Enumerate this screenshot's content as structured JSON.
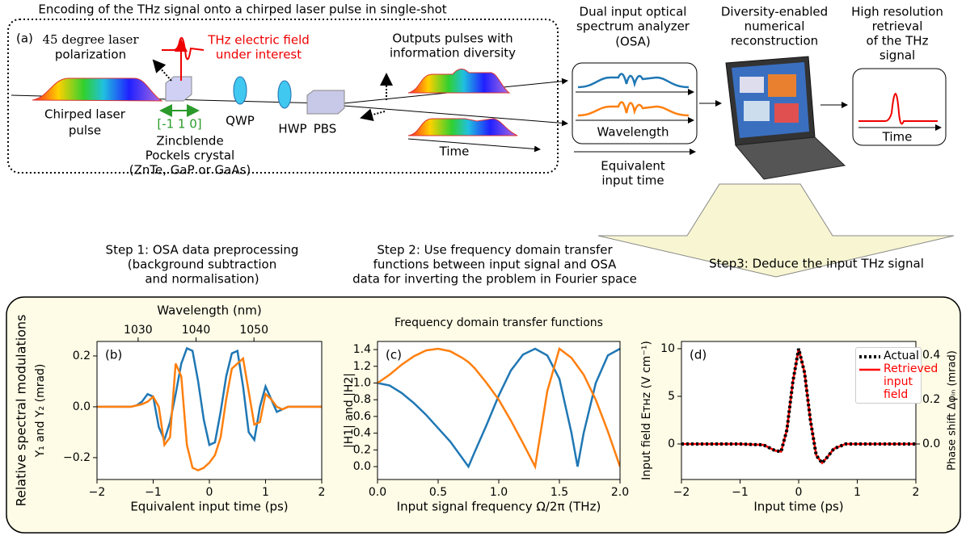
{
  "diagram": {
    "title": "Encoding of the THz signal onto a chirped laser pulse in single-shot",
    "panel": "(a)",
    "polarization": [
      "45 degree laser",
      "polarization"
    ],
    "thz_field": [
      "THz electric field",
      "under interest"
    ],
    "outputs": [
      "Outputs pulses with",
      "information diversity"
    ],
    "chirped": [
      "Chirped laser",
      "pulse"
    ],
    "axis_dir": "[-1 1 0]",
    "crystal": [
      "Zincblende",
      "Pockels crystal",
      "(ZnTe, GaP or GaAs)"
    ],
    "qwp": "QWP",
    "hwp": "HWP",
    "pbs": "PBS",
    "time": "Time",
    "osa": {
      "title": [
        "Dual input optical",
        "spectrum analyzer",
        "(OSA)"
      ],
      "wavelength": "Wavelength",
      "equiv": [
        "Equivalent",
        "input time"
      ]
    },
    "reconstruction": [
      "Diversity-enabled",
      "numerical",
      "reconstruction"
    ],
    "retrieval": {
      "title": [
        "High resolution",
        "retrieval",
        "of the THz",
        "signal"
      ],
      "time": "Time"
    }
  },
  "steps": [
    [
      "Step 1: OSA data preprocessing",
      "(background subtraction",
      "and normalisation)"
    ],
    [
      "Step 2: Use frequency domain transfer",
      "functions between input signal and OSA",
      "data for inverting the problem in Fourier space"
    ],
    [
      "Step3: Deduce the input THz signal"
    ]
  ],
  "chart_data": [
    {
      "type": "line",
      "panel_label": "(b)",
      "x_label": "Equivalent input time (ps)",
      "y_label": [
        "Relative spectral modulations",
        "Y₁ and Y₂ (mrad)"
      ],
      "x2_label": "Wavelength (nm)",
      "x": [
        -2,
        -1.9,
        -1.8,
        -1.7,
        -1.6,
        -1.5,
        -1.4,
        -1.3,
        -1.2,
        -1.1,
        -1,
        -0.9,
        -0.8,
        -0.7,
        -0.6,
        -0.5,
        -0.4,
        -0.3,
        -0.2,
        -0.1,
        0,
        0.1,
        0.2,
        0.3,
        0.4,
        0.5,
        0.6,
        0.7,
        0.8,
        0.9,
        1,
        1.1,
        1.2,
        1.3,
        1.4,
        1.5,
        1.6,
        1.7,
        1.8,
        1.9,
        2
      ],
      "series": [
        {
          "color": "#1f77b4",
          "values": [
            0,
            0,
            0,
            0,
            0,
            0,
            0,
            0.005,
            0.02,
            0.05,
            0.04,
            -0.08,
            -0.13,
            -0.06,
            0.05,
            0.17,
            0.23,
            0.22,
            0.1,
            -0.05,
            -0.15,
            -0.14,
            -0.02,
            0.12,
            0.21,
            0.22,
            0.08,
            -0.1,
            -0.13,
            0,
            0.08,
            0.03,
            -0.02,
            -0.01,
            0,
            0,
            0,
            0,
            0,
            0,
            0
          ]
        },
        {
          "color": "#ff7f0e",
          "values": [
            0,
            0,
            0,
            0,
            0,
            0,
            0,
            0.005,
            0.01,
            0.02,
            0.04,
            0,
            -0.15,
            -0.12,
            0.17,
            0.12,
            -0.15,
            -0.24,
            -0.25,
            -0.24,
            -0.22,
            -0.19,
            -0.12,
            0.03,
            0.15,
            0.17,
            0.19,
            0.06,
            -0.07,
            -0.06,
            0.05,
            0.03,
            0,
            -0.01,
            0,
            0,
            0,
            0,
            0,
            0,
            0
          ]
        }
      ],
      "xlim": [
        -2,
        2
      ],
      "xticks": [
        {
          "value": -2,
          "label": "−2"
        },
        {
          "value": -1,
          "label": "−1"
        },
        0,
        1,
        2
      ],
      "ylim": [
        -0.286,
        0.257
      ],
      "yticks": [
        {
          "value": -0.2,
          "label": "−0.2"
        },
        {
          "value": 0,
          "label": "0.0"
        },
        0.2
      ],
      "x2lim": [
        1022.9,
        1061.7
      ],
      "x2ticks": [
        1030,
        1040,
        1050
      ]
    },
    {
      "type": "line",
      "title": "Frequency domain transfer functions",
      "panel_label": "(c)",
      "x_label": "Input signal frequency  Ω/2π (THz)",
      "y_label": [
        "|H1| and |H2|"
      ],
      "x": [
        0,
        0.1,
        0.2,
        0.3,
        0.4,
        0.5,
        0.6,
        0.7,
        0.75,
        0.8,
        0.9,
        1,
        1.1,
        1.2,
        1.3,
        1.4,
        1.5,
        1.6,
        1.65,
        1.7,
        1.8,
        1.9,
        2
      ],
      "series": [
        {
          "color": "#1f77b4",
          "values": [
            1,
            0.97,
            0.88,
            0.76,
            0.62,
            0.46,
            0.3,
            0.1,
            0,
            0.17,
            0.5,
            0.85,
            1.15,
            1.34,
            1.41,
            1.33,
            1.05,
            0.4,
            0,
            0.4,
            1,
            1.33,
            1.41
          ]
        },
        {
          "color": "#ff7f0e",
          "values": [
            1,
            1.1,
            1.22,
            1.32,
            1.39,
            1.41,
            1.38,
            1.3,
            1.25,
            1.18,
            1,
            0.8,
            0.55,
            0.28,
            0,
            0.9,
            1.41,
            1.3,
            1.2,
            1.1,
            0.8,
            0.42,
            0
          ]
        }
      ],
      "xlim": [
        0,
        2
      ],
      "xticks": [
        {
          "value": 0,
          "label": "0.0"
        },
        0.5,
        {
          "value": 1,
          "label": "1.0"
        },
        1.5,
        {
          "value": 2,
          "label": "2.0"
        }
      ],
      "ylim": [
        -0.154,
        1.497
      ],
      "yticks": [
        {
          "value": 0,
          "label": "0.0"
        },
        0.2,
        0.4,
        0.6,
        0.8,
        {
          "value": 1,
          "label": "1.0"
        },
        1.2,
        1.4
      ]
    },
    {
      "type": "line",
      "panel_label": "(d)",
      "x_label": "Input time (ps)",
      "y_label": [
        "Input field Eᴛʜᴢ (V cm⁻¹)"
      ],
      "y2_label": "Phase shift Δφᵢₙ (mrad)",
      "x": [
        -2,
        -1,
        -0.6,
        -0.4,
        -0.3,
        -0.2,
        -0.1,
        0,
        0.1,
        0.2,
        0.3,
        0.4,
        0.5,
        0.6,
        0.8,
        1,
        2
      ],
      "series": [
        {
          "name": "Actual",
          "color": "#000000",
          "linestyle": "dotted",
          "values": [
            0,
            0,
            -0.1,
            -0.7,
            -0.8,
            1.5,
            6.5,
            10,
            7.5,
            2.5,
            -1.2,
            -2,
            -1.3,
            -0.5,
            0,
            0,
            0
          ]
        },
        {
          "name": "Retrieved input field",
          "color": "#ff0000",
          "linestyle": "solid",
          "values": [
            0,
            0,
            -0.1,
            -0.7,
            -0.8,
            1.5,
            6.5,
            10,
            7.5,
            2.5,
            -1.2,
            -2,
            -1.3,
            -0.5,
            0,
            0,
            0
          ]
        }
      ],
      "xlim": [
        -2,
        2
      ],
      "xticks": [
        {
          "value": -2,
          "label": "−2"
        },
        {
          "value": -1,
          "label": "−1"
        },
        0,
        1,
        2
      ],
      "ylim": [
        -3.73,
        10.76
      ],
      "yticks": [
        0,
        5,
        10
      ],
      "y2lim": [
        -0.16,
        0.462
      ],
      "y2ticks": [
        {
          "value": 0,
          "label": "0.0"
        },
        0.2,
        0.4
      ],
      "legend": "upper right"
    }
  ]
}
